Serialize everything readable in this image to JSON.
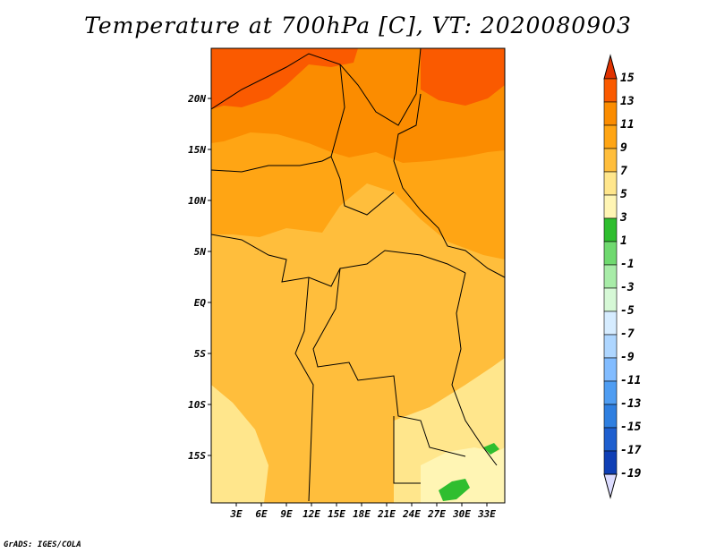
{
  "title": "Temperature at 700hPa [C], VT: 2020080903",
  "credit": "GrADS: IGES/COLA",
  "lat_labels": [
    "20N",
    "15N",
    "10N",
    "5N",
    "EQ",
    "5S",
    "10S",
    "15S"
  ],
  "lon_labels": [
    "3E",
    "6E",
    "9E",
    "12E",
    "15E",
    "18E",
    "21E",
    "24E",
    "27E",
    "30E",
    "33E"
  ],
  "colorbar": {
    "labels": [
      "15",
      "13",
      "11",
      "9",
      "7",
      "5",
      "3",
      "1",
      "-1",
      "-3",
      "-5",
      "-7",
      "-9",
      "-11",
      "-13",
      "-15",
      "-17",
      "-19"
    ],
    "colors": [
      "#e03200",
      "#fa5a00",
      "#fb8c00",
      "#ffa514",
      "#ffbe3c",
      "#ffe68c",
      "#fff5b4",
      "#2fbe2f",
      "#6fd96f",
      "#a8eca8",
      "#d6f8d6",
      "#d6ecff",
      "#aed6ff",
      "#82bcff",
      "#4f9df2",
      "#2f7fe0",
      "#1e5fcf",
      "#0f3fb5",
      "#082e8c"
    ]
  },
  "map": {
    "lat_range": [
      -20,
      25
    ],
    "lon_range": [
      0,
      35
    ],
    "field_colors": {
      "t13": "#fa5a00",
      "t11": "#fb8c00",
      "t9": "#ffa514",
      "t7": "#ffbe3c",
      "t5": "#ffe68c",
      "t3": "#fff5b4",
      "t1": "#2fbe2f"
    }
  }
}
